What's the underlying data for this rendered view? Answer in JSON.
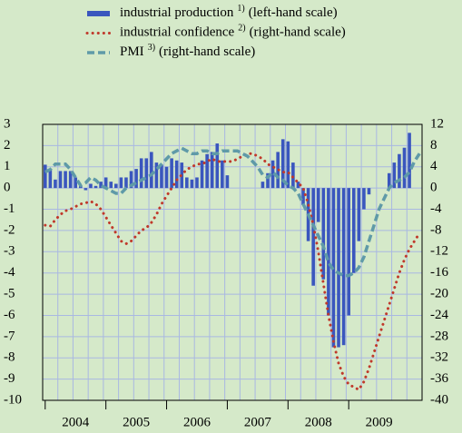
{
  "chart_data": {
    "type": "bar_line",
    "categories": [
      null,
      null,
      null,
      null,
      null,
      null,
      "2004",
      null,
      null,
      null,
      null,
      null,
      null,
      null,
      null,
      null,
      null,
      null,
      "2005",
      null,
      null,
      null,
      null,
      null,
      null,
      null,
      null,
      null,
      null,
      null,
      "2006",
      null,
      null,
      null,
      null,
      null,
      null,
      null,
      null,
      null,
      null,
      null,
      "2007",
      null,
      null,
      null,
      null,
      null,
      null,
      null,
      null,
      null,
      null,
      null,
      "2008",
      null,
      null,
      null,
      null,
      null,
      null,
      null,
      null,
      null,
      null,
      null,
      "2009",
      null,
      null,
      null,
      null,
      null,
      null,
      null,
      null
    ],
    "series": [
      {
        "name": "industrial production",
        "footnote": "1)",
        "scale_note": "(left-hand scale)",
        "type": "bar",
        "axis": "y",
        "color": "#3a56be",
        "values": [
          1.1,
          0.9,
          0.4,
          0.8,
          0.8,
          0.8,
          0.5,
          0.1,
          -0.1,
          0.2,
          0.1,
          0.3,
          0.5,
          0.3,
          0.2,
          0.5,
          0.5,
          0.8,
          0.9,
          1.4,
          1.4,
          1.7,
          1.2,
          1.1,
          1.0,
          1.4,
          1.3,
          1.2,
          0.5,
          0.4,
          0.5,
          1.3,
          1.6,
          1.7,
          2.1,
          1.3,
          0.6,
          0.0,
          0.0,
          0.0,
          0.0,
          0.0,
          0.0,
          0.3,
          0.7,
          1.3,
          1.7,
          2.3,
          2.2,
          1.2,
          0.3,
          -0.8,
          -2.5,
          -4.6,
          -1.6,
          -4.3,
          -6.0,
          -7.5,
          -7.5,
          -7.4,
          -6.0,
          -4.0,
          -2.5,
          -1.0,
          -0.3,
          0.0,
          0.0,
          0.0,
          0.7,
          1.2,
          1.6,
          1.9,
          2.6,
          null,
          null
        ]
      },
      {
        "name": "industrial confidence",
        "footnote": "2)",
        "scale_note": "(right-hand scale)",
        "type": "line",
        "style": "dotted",
        "axis": "y2",
        "color": "#c0392b",
        "values": [
          -7,
          -7.2,
          -6,
          -5,
          -4.3,
          -4,
          -3.5,
          -3,
          -2.8,
          -2.5,
          -3,
          -4,
          -5.5,
          -7,
          -8.5,
          -10,
          -10.5,
          -10,
          -9,
          -8,
          -7.5,
          -6.5,
          -5,
          -3,
          -1.5,
          0,
          1.5,
          2.5,
          3.5,
          4,
          4.5,
          4.5,
          5,
          5.5,
          5,
          5,
          5,
          5,
          5.5,
          6,
          6.5,
          6.5,
          6,
          5.5,
          4.5,
          4,
          3.5,
          3,
          3,
          2,
          1,
          0,
          -3,
          -7,
          -12,
          -18,
          -24,
          -29,
          -33,
          -35.5,
          -37,
          -37.5,
          -38,
          -36.5,
          -34,
          -31,
          -28,
          -25,
          -22,
          -19,
          -16,
          -13.5,
          -11.5,
          -10,
          -8.5
        ]
      },
      {
        "name": "PMI",
        "footnote": "3)",
        "scale_note": "(right-hand scale)",
        "type": "line",
        "style": "dashed",
        "axis": "y2",
        "color": "#5f9aa8",
        "values": [
          3,
          3.5,
          4.5,
          4.5,
          4.5,
          3.5,
          2,
          0.5,
          1,
          2,
          1.5,
          0.5,
          0,
          -0.5,
          -1,
          -1,
          0,
          0.5,
          1,
          1.5,
          2,
          2.5,
          3.5,
          4.5,
          5.5,
          6.5,
          7,
          7.5,
          7,
          6.5,
          6.5,
          7,
          7,
          6.5,
          6.5,
          7,
          7,
          7,
          7,
          6.5,
          6,
          5,
          4,
          2.5,
          2,
          3,
          2,
          1.5,
          0.5,
          0,
          -1,
          -3,
          -5,
          -7,
          -9,
          -11,
          -14,
          -15.5,
          -16,
          -16.5,
          -16.5,
          -16,
          -15,
          -13,
          -10,
          -7,
          -4,
          -2,
          0,
          1,
          1.5,
          2,
          3,
          5,
          6.5
        ]
      }
    ],
    "ylim": [
      -10,
      3
    ],
    "yticks": [
      -10,
      -9,
      -8,
      -7,
      -6,
      -5,
      -4,
      -3,
      -2,
      -1,
      0,
      1,
      2,
      3
    ],
    "y2lim": [
      -40,
      12
    ],
    "y2ticks": [
      -40,
      -36,
      -32,
      -28,
      -24,
      -20,
      -16,
      -12,
      -8,
      -4,
      0,
      4,
      8,
      12
    ],
    "grid": true
  }
}
